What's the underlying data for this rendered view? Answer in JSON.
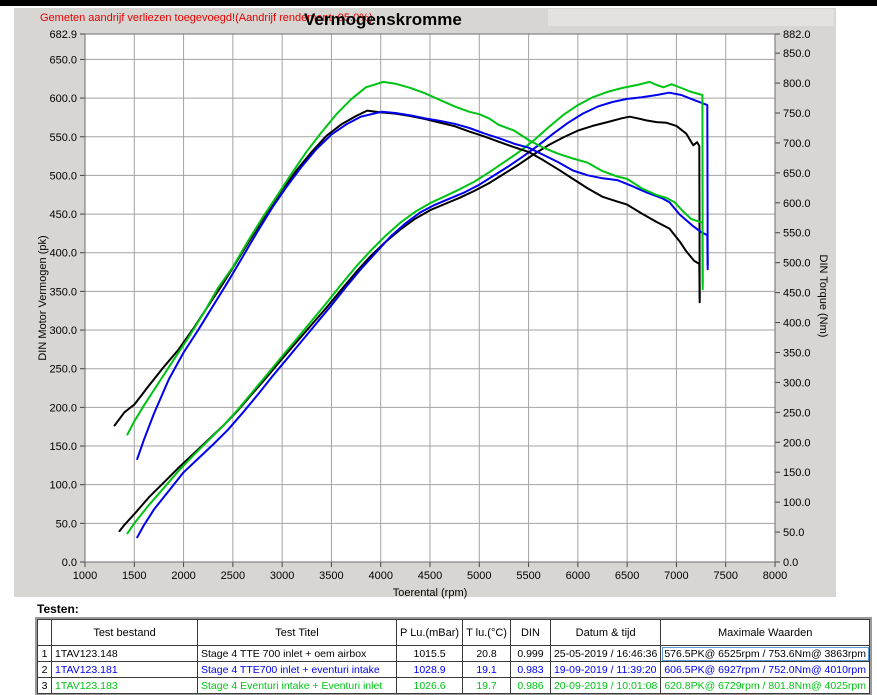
{
  "header": {
    "warning": "Gemeten aandrijf verliezen toegevoegd!(Aandrijf rendement: 95.0%)",
    "title": "Vermogenskromme"
  },
  "chart_data": {
    "type": "line",
    "title": "Vermogenskromme",
    "grid": true,
    "x_axis": {
      "label": "Toerental (rpm)",
      "min": 1000,
      "max": 8000,
      "tick_step": 500
    },
    "y_left": {
      "label": "DIN Motor Vermogen (pk)",
      "min": 0,
      "max": 682.9,
      "ticks": [
        682.9,
        650,
        600,
        550,
        500,
        450,
        400,
        350,
        300,
        250,
        200,
        150,
        100,
        50,
        0
      ]
    },
    "y_right": {
      "label": "DIN Torque (Nm)",
      "min": 0,
      "max": 882.0,
      "ticks": [
        882,
        850,
        800,
        750,
        700,
        650,
        600,
        550,
        500,
        450,
        400,
        350,
        300,
        250,
        200,
        150,
        100,
        50,
        0
      ]
    },
    "series": [
      {
        "name": "power-run1-black",
        "color": "#000000",
        "axis": "left",
        "points": [
          [
            1350,
            40
          ],
          [
            1400,
            48
          ],
          [
            1500,
            62
          ],
          [
            1650,
            84
          ],
          [
            1800,
            103
          ],
          [
            1950,
            122
          ],
          [
            2100,
            140
          ],
          [
            2250,
            158
          ],
          [
            2400,
            176
          ],
          [
            2550,
            196
          ],
          [
            2700,
            218
          ],
          [
            2850,
            240
          ],
          [
            3000,
            263
          ],
          [
            3150,
            285
          ],
          [
            3300,
            307
          ],
          [
            3450,
            329
          ],
          [
            3600,
            352
          ],
          [
            3750,
            375
          ],
          [
            3900,
            396
          ],
          [
            4050,
            414
          ],
          [
            4200,
            430
          ],
          [
            4350,
            444
          ],
          [
            4500,
            455
          ],
          [
            4650,
            463
          ],
          [
            4800,
            471
          ],
          [
            4950,
            480
          ],
          [
            5100,
            490
          ],
          [
            5250,
            502
          ],
          [
            5400,
            514
          ],
          [
            5550,
            527
          ],
          [
            5700,
            539
          ],
          [
            5850,
            549
          ],
          [
            6000,
            558
          ],
          [
            6150,
            564
          ],
          [
            6300,
            569
          ],
          [
            6450,
            574
          ],
          [
            6525,
            576
          ],
          [
            6600,
            574
          ],
          [
            6700,
            571
          ],
          [
            6800,
            569
          ],
          [
            6900,
            568
          ],
          [
            7000,
            564
          ],
          [
            7100,
            554
          ],
          [
            7170,
            539
          ],
          [
            7210,
            543
          ],
          [
            7232,
            538
          ],
          [
            7236,
            341
          ]
        ]
      },
      {
        "name": "power-run2-blue",
        "color": "#0000ee",
        "axis": "left",
        "points": [
          [
            1530,
            32
          ],
          [
            1600,
            48
          ],
          [
            1700,
            68
          ],
          [
            1850,
            92
          ],
          [
            2000,
            116
          ],
          [
            2150,
            134
          ],
          [
            2300,
            152
          ],
          [
            2450,
            171
          ],
          [
            2600,
            193
          ],
          [
            2750,
            216
          ],
          [
            2900,
            240
          ],
          [
            3050,
            263
          ],
          [
            3200,
            286
          ],
          [
            3350,
            309
          ],
          [
            3500,
            332
          ],
          [
            3650,
            356
          ],
          [
            3800,
            379
          ],
          [
            3950,
            400
          ],
          [
            4100,
            421
          ],
          [
            4250,
            438
          ],
          [
            4400,
            452
          ],
          [
            4550,
            462
          ],
          [
            4700,
            470
          ],
          [
            4850,
            478
          ],
          [
            5000,
            488
          ],
          [
            5150,
            500
          ],
          [
            5300,
            512
          ],
          [
            5450,
            525
          ],
          [
            5600,
            539
          ],
          [
            5750,
            554
          ],
          [
            5900,
            568
          ],
          [
            6050,
            580
          ],
          [
            6200,
            589
          ],
          [
            6350,
            595
          ],
          [
            6500,
            599
          ],
          [
            6650,
            601
          ],
          [
            6800,
            604
          ],
          [
            6927,
            607
          ],
          [
            7050,
            604
          ],
          [
            7150,
            599
          ],
          [
            7250,
            594
          ],
          [
            7313,
            591
          ],
          [
            7317,
            384
          ]
        ]
      },
      {
        "name": "power-run3-green",
        "color": "#00c414",
        "axis": "left",
        "points": [
          [
            1430,
            37
          ],
          [
            1500,
            50
          ],
          [
            1650,
            74
          ],
          [
            1800,
            96
          ],
          [
            1950,
            118
          ],
          [
            2100,
            138
          ],
          [
            2250,
            157
          ],
          [
            2400,
            176
          ],
          [
            2550,
            197
          ],
          [
            2700,
            220
          ],
          [
            2850,
            243
          ],
          [
            3000,
            266
          ],
          [
            3150,
            289
          ],
          [
            3300,
            312
          ],
          [
            3450,
            335
          ],
          [
            3600,
            359
          ],
          [
            3750,
            382
          ],
          [
            3900,
            403
          ],
          [
            4050,
            422
          ],
          [
            4200,
            439
          ],
          [
            4350,
            453
          ],
          [
            4500,
            464
          ],
          [
            4650,
            473
          ],
          [
            4800,
            482
          ],
          [
            4950,
            492
          ],
          [
            5100,
            504
          ],
          [
            5250,
            517
          ],
          [
            5400,
            530
          ],
          [
            5550,
            545
          ],
          [
            5700,
            562
          ],
          [
            5850,
            578
          ],
          [
            6000,
            591
          ],
          [
            6150,
            601
          ],
          [
            6300,
            608
          ],
          [
            6450,
            613
          ],
          [
            6600,
            617
          ],
          [
            6729,
            621
          ],
          [
            6800,
            617
          ],
          [
            6870,
            614
          ],
          [
            6950,
            618
          ],
          [
            7050,
            613
          ],
          [
            7150,
            608
          ],
          [
            7263,
            604
          ],
          [
            7267,
            353
          ]
        ]
      },
      {
        "name": "torque-run1-black",
        "color": "#000000",
        "axis": "right",
        "points": [
          [
            1300,
            228
          ],
          [
            1400,
            250
          ],
          [
            1500,
            263
          ],
          [
            1650,
            295
          ],
          [
            1800,
            326
          ],
          [
            1950,
            355
          ],
          [
            2100,
            390
          ],
          [
            2250,
            428
          ],
          [
            2400,
            465
          ],
          [
            2550,
            505
          ],
          [
            2700,
            545
          ],
          [
            2850,
            585
          ],
          [
            3000,
            622
          ],
          [
            3150,
            655
          ],
          [
            3300,
            685
          ],
          [
            3450,
            712
          ],
          [
            3600,
            731
          ],
          [
            3750,
            745
          ],
          [
            3863,
            754
          ],
          [
            4000,
            751
          ],
          [
            4150,
            749
          ],
          [
            4300,
            745
          ],
          [
            4450,
            740
          ],
          [
            4600,
            734
          ],
          [
            4750,
            728
          ],
          [
            4900,
            719
          ],
          [
            5050,
            711
          ],
          [
            5200,
            702
          ],
          [
            5350,
            693
          ],
          [
            5500,
            685
          ],
          [
            5650,
            671
          ],
          [
            5800,
            656
          ],
          [
            5950,
            640
          ],
          [
            6100,
            624
          ],
          [
            6250,
            610
          ],
          [
            6400,
            602
          ],
          [
            6500,
            597
          ],
          [
            6650,
            582
          ],
          [
            6800,
            568
          ],
          [
            6930,
            557
          ],
          [
            7030,
            536
          ],
          [
            7100,
            519
          ],
          [
            7180,
            503
          ],
          [
            7232,
            498
          ],
          [
            7236,
            434
          ]
        ]
      },
      {
        "name": "torque-run2-blue",
        "color": "#0000ee",
        "axis": "right",
        "points": [
          [
            1530,
            172
          ],
          [
            1600,
            205
          ],
          [
            1700,
            248
          ],
          [
            1850,
            305
          ],
          [
            2000,
            350
          ],
          [
            2150,
            388
          ],
          [
            2300,
            428
          ],
          [
            2450,
            468
          ],
          [
            2600,
            510
          ],
          [
            2750,
            552
          ],
          [
            2900,
            592
          ],
          [
            3050,
            628
          ],
          [
            3200,
            661
          ],
          [
            3350,
            690
          ],
          [
            3500,
            714
          ],
          [
            3650,
            731
          ],
          [
            3800,
            744
          ],
          [
            4010,
            752
          ],
          [
            4150,
            750
          ],
          [
            4300,
            746
          ],
          [
            4450,
            741
          ],
          [
            4600,
            737
          ],
          [
            4750,
            732
          ],
          [
            4900,
            725
          ],
          [
            5050,
            716
          ],
          [
            5200,
            708
          ],
          [
            5350,
            699
          ],
          [
            5500,
            692
          ],
          [
            5650,
            680
          ],
          [
            5800,
            668
          ],
          [
            5950,
            654
          ],
          [
            6100,
            646
          ],
          [
            6250,
            641
          ],
          [
            6400,
            638
          ],
          [
            6550,
            628
          ],
          [
            6700,
            617
          ],
          [
            6850,
            608
          ],
          [
            6930,
            601
          ],
          [
            7030,
            581
          ],
          [
            7100,
            571
          ],
          [
            7170,
            561
          ],
          [
            7250,
            551
          ],
          [
            7313,
            546
          ],
          [
            7317,
            489
          ]
        ]
      },
      {
        "name": "torque-run3-green",
        "color": "#00c414",
        "axis": "right",
        "points": [
          [
            1430,
            213
          ],
          [
            1500,
            235
          ],
          [
            1600,
            262
          ],
          [
            1750,
            300
          ],
          [
            1900,
            338
          ],
          [
            2050,
            375
          ],
          [
            2200,
            415
          ],
          [
            2350,
            458
          ],
          [
            2500,
            493
          ],
          [
            2650,
            535
          ],
          [
            2800,
            575
          ],
          [
            2950,
            612
          ],
          [
            3100,
            650
          ],
          [
            3250,
            686
          ],
          [
            3400,
            718
          ],
          [
            3550,
            748
          ],
          [
            3700,
            773
          ],
          [
            3850,
            793
          ],
          [
            4025,
            802
          ],
          [
            4150,
            799
          ],
          [
            4300,
            792
          ],
          [
            4450,
            783
          ],
          [
            4600,
            772
          ],
          [
            4750,
            761
          ],
          [
            4900,
            752
          ],
          [
            5000,
            748
          ],
          [
            5100,
            741
          ],
          [
            5200,
            730
          ],
          [
            5350,
            721
          ],
          [
            5500,
            705
          ],
          [
            5650,
            692
          ],
          [
            5800,
            682
          ],
          [
            5950,
            674
          ],
          [
            6100,
            667
          ],
          [
            6250,
            653
          ],
          [
            6400,
            644
          ],
          [
            6500,
            640
          ],
          [
            6650,
            624
          ],
          [
            6800,
            613
          ],
          [
            6900,
            608
          ],
          [
            6980,
            601
          ],
          [
            7060,
            587
          ],
          [
            7150,
            573
          ],
          [
            7263,
            567
          ],
          [
            7267,
            464
          ]
        ]
      }
    ]
  },
  "tests_section": {
    "label": "Testen:",
    "table": {
      "headers": [
        "",
        "Test bestand",
        "Test Titel",
        "P Lu.(mBar)",
        "T lu.(°C)",
        "DIN",
        "Datum & tijd",
        "Maximale Waarden"
      ],
      "rows": [
        {
          "num": "1",
          "color": "#000000",
          "selected_max": true,
          "file": "1TAV123.148",
          "titel": "Stage 4 TTE 700  inlet + oem airbox",
          "p_lu": "1015.5",
          "t_lu": "20.8",
          "din": "0.999",
          "datum": "25-05-2019 / 16:46:36",
          "max": "576.5PK@ 6525rpm / 753.6Nm@ 3863rpm"
        },
        {
          "num": "2",
          "color": "#0000ee",
          "selected_max": false,
          "file": "1TAV123.181",
          "titel": "Stage 4 TTE700 inlet + eventuri intake",
          "p_lu": "1028.9",
          "t_lu": "19.1",
          "din": "0.983",
          "datum": "19-09-2019 / 11:39:20",
          "max": "606.5PK@ 6927rpm / 752.0Nm@ 4010rpm"
        },
        {
          "num": "3",
          "color": "#00c414",
          "selected_max": false,
          "file": "1TAV123.183",
          "titel": "Stage 4 Eventuri intake + Eventuri inlet",
          "p_lu": "1026.6",
          "t_lu": "19.7",
          "din": "0.986",
          "datum": "20-09-2019 / 10:01:08",
          "max": "620.8PK@ 6729rpm / 801.8Nm@ 4025rpm"
        }
      ]
    }
  },
  "colors": {
    "panel_bg": "#d8d6d2",
    "plot_bg": "#ffffff",
    "grid": "#a3a3a3",
    "plot_border": "#6e6e6e",
    "warning_text": "#e60000",
    "topbar": "#000000"
  }
}
